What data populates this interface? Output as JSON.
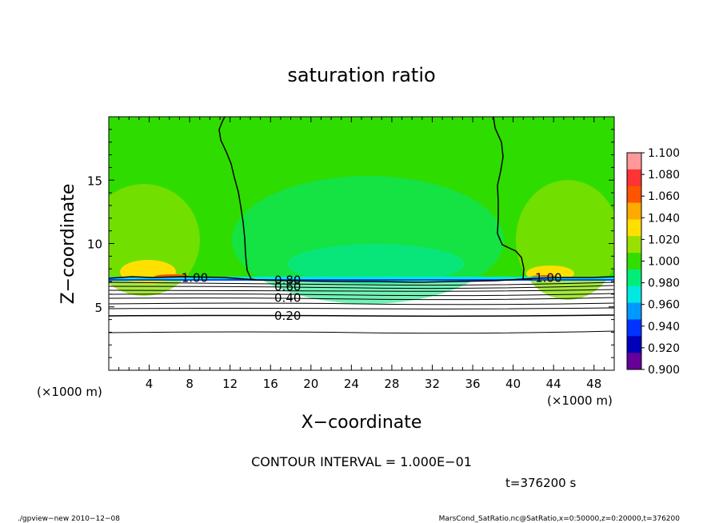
{
  "chart_data": {
    "type": "heatmap",
    "title": "saturation ratio",
    "xlabel": "X−coordinate",
    "ylabel": "Z−coordinate",
    "x_unit_left": "(×1000 m)",
    "x_unit_right": "(×1000 m)",
    "xlim": [
      0,
      50
    ],
    "ylim": [
      0,
      20
    ],
    "x_ticks": [
      4,
      8,
      12,
      16,
      20,
      24,
      28,
      32,
      36,
      40,
      44,
      48
    ],
    "y_ticks": [
      5,
      10,
      15
    ],
    "colorbar": {
      "levels": [
        "1.100",
        "1.080",
        "1.060",
        "1.040",
        "1.020",
        "1.000",
        "0.980",
        "0.960",
        "0.940",
        "0.920",
        "0.900"
      ],
      "colors": [
        "#ff9999",
        "#ff3333",
        "#ff5500",
        "#ffaa00",
        "#ffe000",
        "#99e000",
        "#33dd00",
        "#00ee77",
        "#00e8e0",
        "#0099ff",
        "#0033ff",
        "#0000bb",
        "#660099"
      ]
    },
    "contour_labels": [
      {
        "text": "1.00",
        "x": 8.5,
        "z": 7.3
      },
      {
        "text": "1.00",
        "x": 43.5,
        "z": 7.3
      },
      {
        "text": "0.80",
        "x": 17.7,
        "z": 7.1
      },
      {
        "text": "0.60",
        "x": 17.7,
        "z": 6.6
      },
      {
        "text": "0.40",
        "x": 17.7,
        "z": 5.7
      },
      {
        "text": "0.20",
        "x": 17.7,
        "z": 4.3
      }
    ],
    "contour_interval": "CONTOUR INTERVAL = 1.000E−01",
    "time": "t=376200 s"
  },
  "footer": {
    "left": "./gpview−new   2010−12−08",
    "right": "MarsCond_SatRatio.nc@SatRatio,x=0:50000,z=0:20000,t=376200"
  }
}
